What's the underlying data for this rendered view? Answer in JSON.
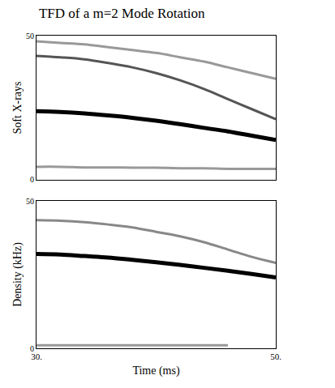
{
  "chart_data": [
    {
      "type": "line",
      "title": "TFD of a m=2 Mode Rotation",
      "ylabel": "Soft X-rays",
      "xlim": [
        30,
        50
      ],
      "ylim": [
        0,
        50
      ],
      "yticks": [
        0,
        50
      ],
      "tick_labels": "y",
      "series": [
        {
          "color": "#000000",
          "x": [
            30,
            32,
            34,
            36,
            38,
            40,
            42,
            44,
            46,
            48,
            50
          ],
          "values": [
            23.8,
            23.5,
            23,
            22.3,
            21.5,
            20.5,
            19.3,
            18,
            16.8,
            15.3,
            13.8
          ]
        },
        {
          "color": "#555555",
          "x": [
            30,
            32,
            34,
            36,
            38,
            40,
            42,
            44,
            46,
            48,
            50
          ],
          "values": [
            43,
            42.5,
            41.8,
            40.5,
            39,
            37,
            34.5,
            31.5,
            28,
            24.5,
            21
          ]
        },
        {
          "color": "#999999",
          "x": [
            30,
            32,
            34,
            36,
            38,
            40,
            42,
            44,
            46,
            48,
            50
          ],
          "values": [
            48,
            47.5,
            47,
            46,
            45,
            44,
            42.5,
            41,
            39,
            37,
            35
          ]
        },
        {
          "color": "#999999",
          "x": [
            30,
            32,
            34,
            36,
            38,
            40,
            42,
            44,
            46,
            48,
            50
          ],
          "values": [
            4.5,
            4.5,
            4.3,
            4.3,
            4.2,
            4.2,
            4,
            4,
            3.8,
            3.8,
            3.8
          ]
        }
      ]
    },
    {
      "type": "line",
      "ylabel": "Density (kHz)",
      "xlabel": "Time (ms)",
      "xlim": [
        30,
        50
      ],
      "xticks": [
        {
          "value": 30,
          "label": "30."
        },
        {
          "value": 50,
          "label": "50."
        }
      ],
      "ylim": [
        0,
        50
      ],
      "yticks": [
        0,
        50
      ],
      "series": [
        {
          "color": "#000000",
          "x": [
            30,
            32,
            34,
            36,
            38,
            40,
            42,
            44,
            46,
            48,
            50
          ],
          "values": [
            32,
            31.8,
            31.3,
            30.8,
            30,
            29.2,
            28.3,
            27.3,
            26.3,
            25.2,
            24
          ]
        },
        {
          "color": "#888888",
          "x": [
            30,
            32,
            34,
            36,
            38,
            40,
            42,
            44,
            46,
            48,
            50
          ],
          "values": [
            43.5,
            43.3,
            42.8,
            42,
            41,
            39.5,
            38,
            36,
            33.5,
            31,
            29
          ]
        },
        {
          "color": "#999999",
          "x": [
            30,
            32,
            34,
            36,
            38,
            40,
            42,
            44,
            46
          ],
          "values": [
            1,
            1,
            1,
            1,
            1,
            1,
            1,
            1,
            1
          ]
        }
      ]
    }
  ]
}
